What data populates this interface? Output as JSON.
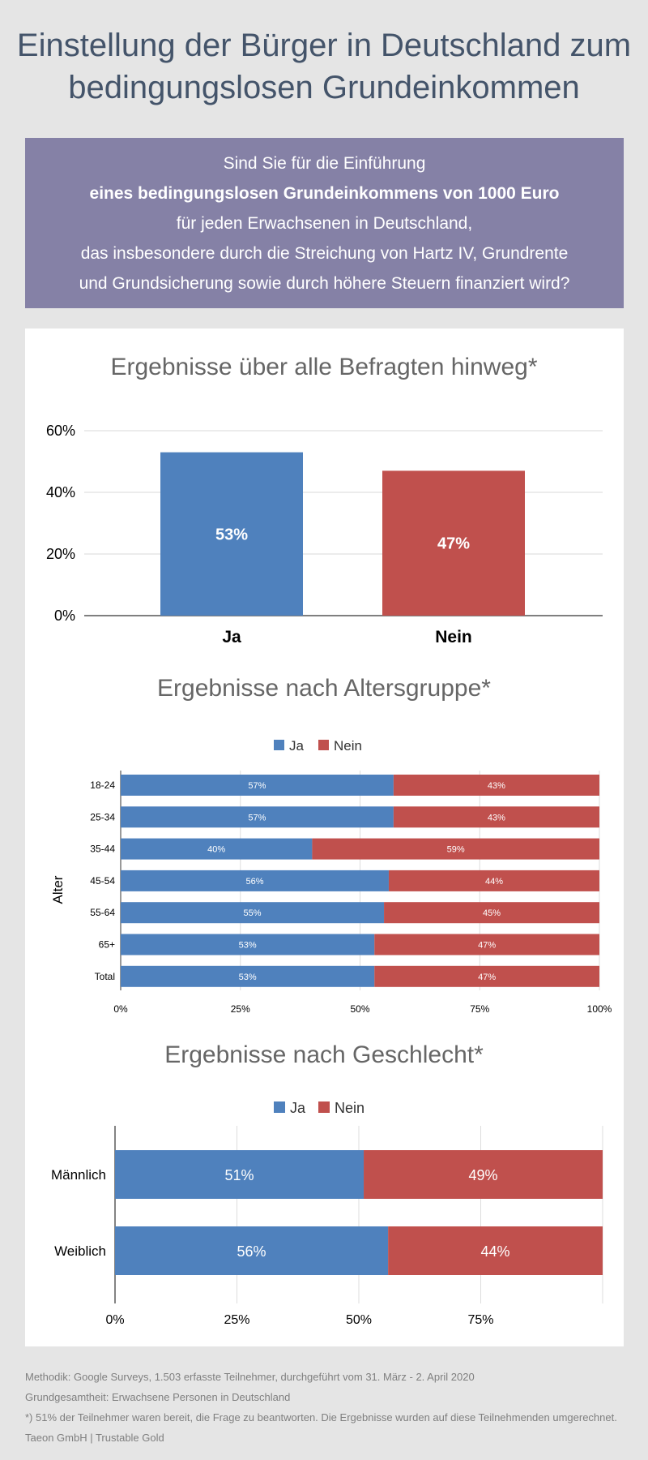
{
  "title": {
    "line1": "Einstellung der Bürger in Deutschland zum",
    "line2": "bedingungslosen Grundeinkommen"
  },
  "question": {
    "line1": "Sind Sie für die Einführung",
    "line2": "eines bedingungslosen Grundeinkommens von 1000 Euro",
    "line3": "für jeden Erwachsenen in Deutschland,",
    "line4": "das insbesondere durch die Streichung von Hartz IV, Grundrente",
    "line5": "und Grundsicherung sowie durch höhere Steuern finanziert wird?"
  },
  "colors": {
    "ja": "#4f81bd",
    "nein": "#c0504d"
  },
  "chart_data": [
    {
      "type": "bar",
      "title": "Ergebnisse über alle Befragten hinweg*",
      "categories": [
        "Ja",
        "Nein"
      ],
      "values": [
        53,
        47
      ],
      "data_labels": [
        "53%",
        "47%"
      ],
      "ylim": [
        0,
        60
      ],
      "yticks": [
        "0%",
        "20%",
        "40%",
        "60%"
      ],
      "grid": true
    },
    {
      "type": "bar",
      "orientation": "horizontal",
      "stacked": true,
      "title": "Ergebnisse nach Altersgruppe*",
      "ylabel": "Alter",
      "legend": [
        "Ja",
        "Nein"
      ],
      "legend_position": "top",
      "categories": [
        "18-24",
        "25-34",
        "35-44",
        "45-54",
        "55-64",
        "65+",
        "Total"
      ],
      "series": [
        {
          "name": "Ja",
          "values": [
            57,
            57,
            40,
            56,
            55,
            53,
            53
          ]
        },
        {
          "name": "Nein",
          "values": [
            43,
            43,
            59,
            44,
            45,
            47,
            47
          ]
        }
      ],
      "xlim": [
        0,
        100
      ],
      "xticks": [
        "0%",
        "25%",
        "50%",
        "75%",
        "100%"
      ]
    },
    {
      "type": "bar",
      "orientation": "horizontal",
      "stacked": true,
      "title": "Ergebnisse nach Geschlecht*",
      "legend": [
        "Ja",
        "Nein"
      ],
      "legend_position": "top",
      "categories": [
        "Männlich",
        "Weiblich"
      ],
      "series": [
        {
          "name": "Ja",
          "values": [
            51,
            56
          ]
        },
        {
          "name": "Nein",
          "values": [
            49,
            44
          ]
        }
      ],
      "xlim": [
        0,
        100
      ],
      "xticks": [
        "0%",
        "25%",
        "50%",
        "75%"
      ],
      "grid": true
    }
  ],
  "footer": {
    "method": "Methodik: Google Surveys, 1.503 erfasste Teilnehmer, durchgeführt vom 31. März - 2. April 2020",
    "population": "Grundgesamtheit: Erwachsene Personen in Deutschland",
    "note": "*) 51% der Teilnehmer waren bereit, die Frage zu beantworten. Die Ergebnisse wurden auf diese Teilnehmenden umgerechnet.",
    "credit": "Taeon GmbH | Trustable Gold"
  }
}
